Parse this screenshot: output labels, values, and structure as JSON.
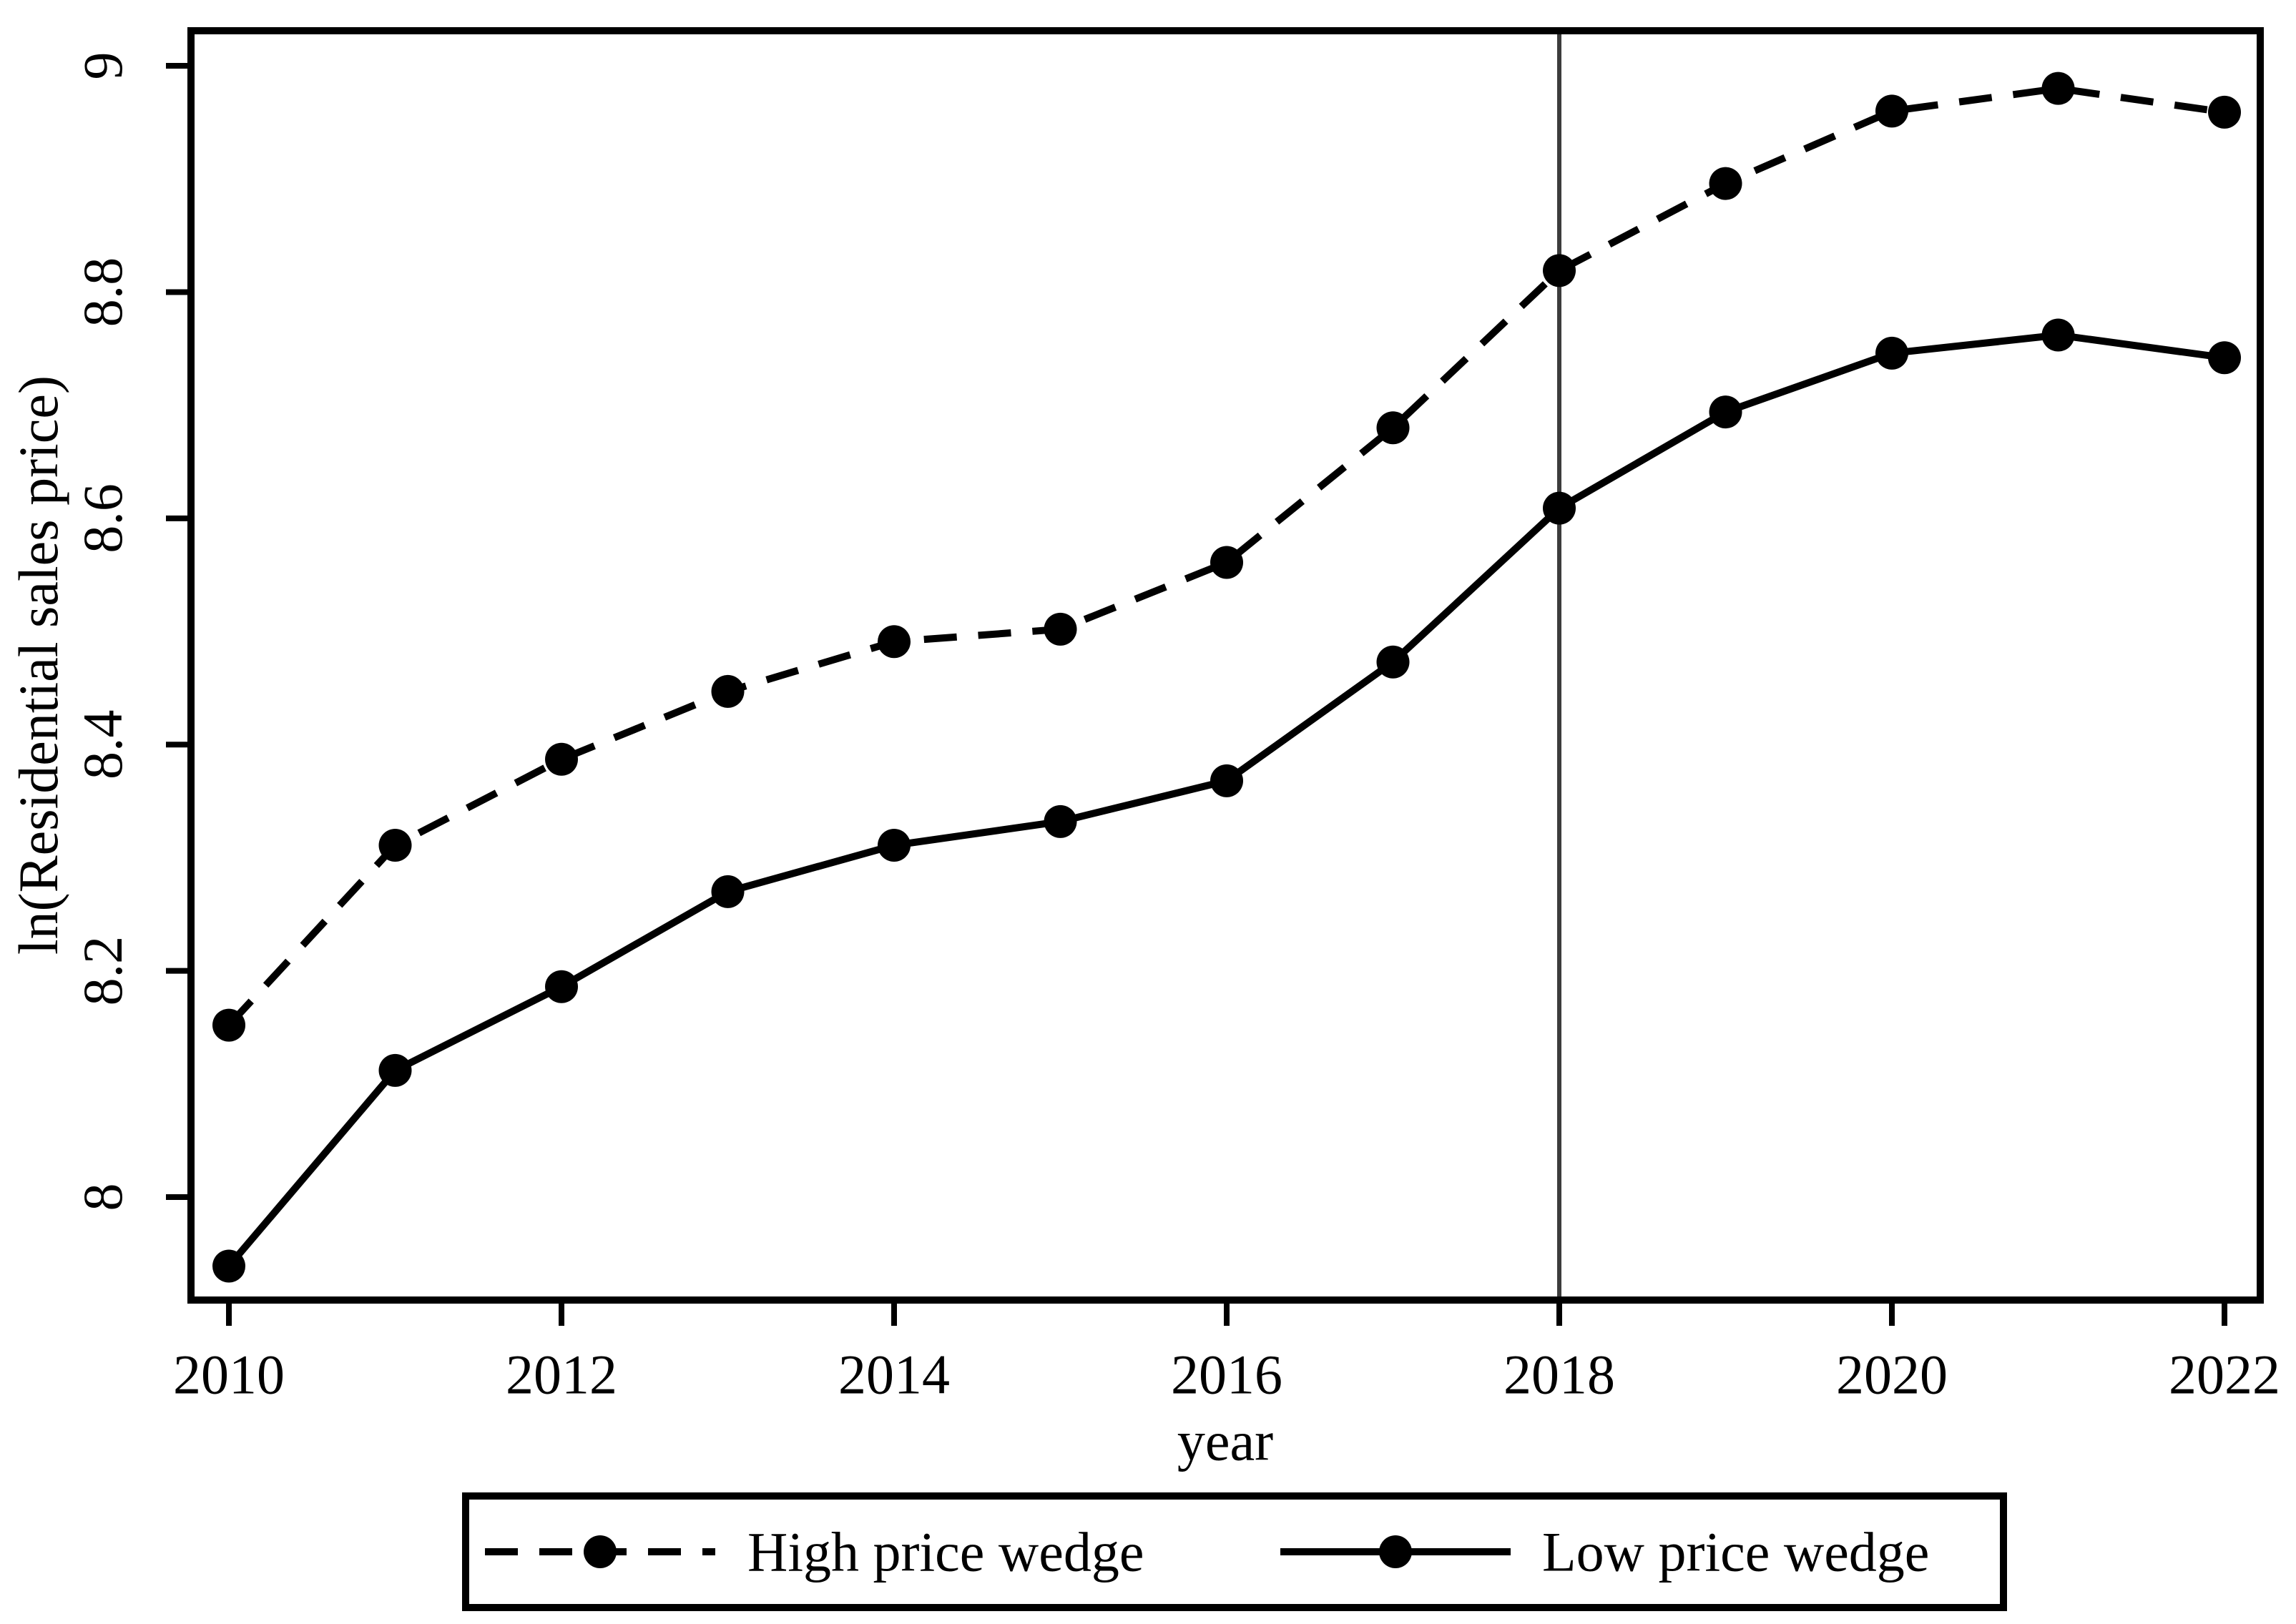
{
  "figure": {
    "background": "#ffffff",
    "series_color": "#000000",
    "reference_line_color": "#3c3c3c"
  },
  "chart_data": {
    "type": "line",
    "x": [
      2010,
      2011,
      2012,
      2013,
      2014,
      2015,
      2016,
      2017,
      2018,
      2019,
      2020,
      2021,
      2022
    ],
    "series": [
      {
        "name": "High price wedge",
        "style": "dashed",
        "marker": "circle",
        "values": [
          8.152,
          8.311,
          8.387,
          8.447,
          8.491,
          8.502,
          8.561,
          8.68,
          8.819,
          8.896,
          8.96,
          8.98,
          8.959
        ]
      },
      {
        "name": "Low price wedge",
        "style": "solid",
        "marker": "circle",
        "values": [
          7.939,
          8.112,
          8.186,
          8.27,
          8.311,
          8.332,
          8.368,
          8.473,
          8.609,
          8.694,
          8.746,
          8.762,
          8.742
        ]
      }
    ],
    "xlabel": "year",
    "ylabel": "ln(Residential sales price)",
    "x_ticks": {
      "values": [
        2010,
        2012,
        2014,
        2016,
        2018,
        2020,
        2022
      ],
      "labels": [
        "2010",
        "2012",
        "2014",
        "2016",
        "2018",
        "2020",
        "2022"
      ]
    },
    "y_ticks": {
      "values": [
        8,
        8.2,
        8.4,
        8.6,
        8.8,
        9
      ],
      "labels": [
        "8",
        "8.2",
        "8.4",
        "8.6",
        "8.8",
        "9"
      ]
    },
    "xlim": [
      2009.772,
      2022.215
    ],
    "ylim": [
      7.909,
      9.031
    ],
    "reference_line_x": 2018,
    "grid": "off",
    "legend_position": "bottom"
  }
}
